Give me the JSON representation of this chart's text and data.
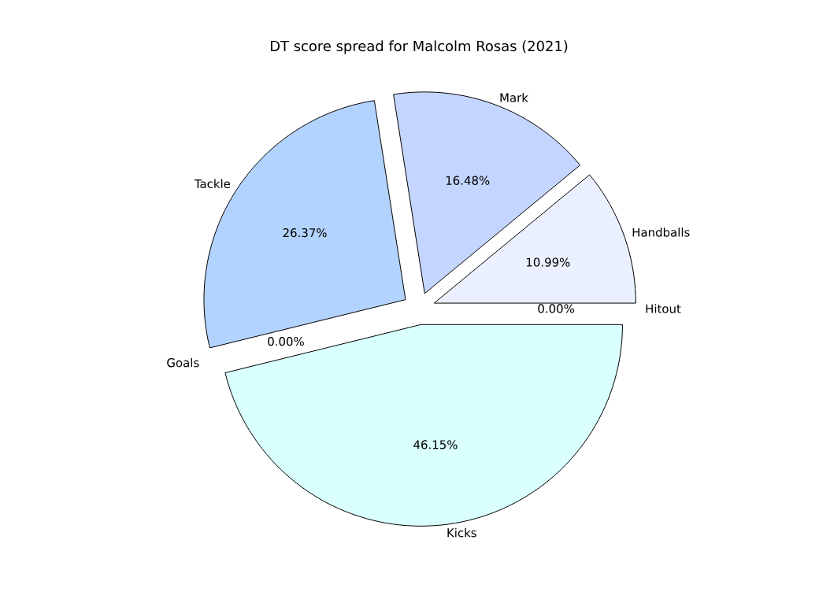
{
  "chart_data": {
    "type": "pie",
    "title": "DT score spread for Malcolm Rosas (2021)",
    "categories": [
      "Handballs",
      "Mark",
      "Tackle",
      "Goals",
      "Kicks",
      "Hitout"
    ],
    "values": [
      10.99,
      16.48,
      26.37,
      0,
      46.15,
      0
    ],
    "value_labels": [
      "10.99%",
      "16.48%",
      "26.37%",
      "0.00%",
      "46.15%",
      "0.00%"
    ],
    "colors": [
      "#eaf0ff",
      "#c4d6ff",
      "#b3d3ff",
      "#d0e6ff",
      "#d9ffff",
      "#e0ecff"
    ]
  }
}
